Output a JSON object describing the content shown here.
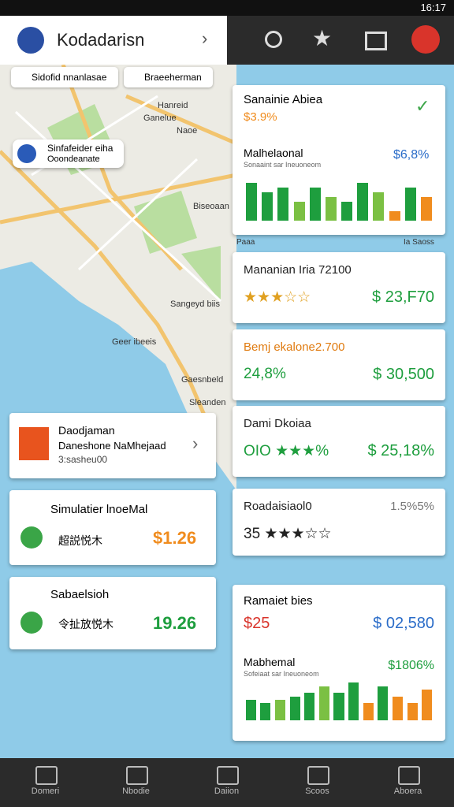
{
  "status_bar": {
    "time": "16:17"
  },
  "header": {
    "title": "Kodadarisn"
  },
  "chips": [
    "Sidofid nnanlasae",
    "Braeeherman"
  ],
  "map_labels": [
    "Hanreid",
    "Ganelue",
    "Naoe",
    "Biseoaan",
    "Sangeyd biis",
    "Geer ibeeis",
    "Gaesnbeld",
    "Sleanden"
  ],
  "map_tooltip": {
    "title": "Sinfafeider eiha",
    "subtitle": "Ooondeanate"
  },
  "left_cards": [
    {
      "title": "Daodjaman",
      "subtitle": "Daneshone NaMhejaad",
      "detail": "3:sasheu00"
    },
    {
      "title": "Simulatier lnoeMal",
      "label": "超説悦木",
      "value": "$1.26"
    },
    {
      "title": "Sabaelsioh",
      "label": "令扯放悦木",
      "value": "19.26"
    }
  ],
  "summary_card": {
    "title": "Sanainie Abiea",
    "value": "$3.9%",
    "chart": {
      "title": "Malhelaonal",
      "subtitle": "Sonaaint sar Ineuoneom",
      "value": "$6,8%",
      "values": [
        8,
        6,
        7,
        4,
        7,
        5,
        4,
        8,
        6,
        2,
        7,
        5
      ],
      "colors": [
        "#1e9e3e",
        "#1e9e3e",
        "#1e9e3e",
        "#7bc043",
        "#1e9e3e",
        "#7bc043",
        "#1e9e3e",
        "#1e9e3e",
        "#7bc043",
        "#f08c1e",
        "#1e9e3e",
        "#f08c1e"
      ],
      "ylim": [
        0,
        10
      ]
    },
    "footer_left": "Paaa",
    "footer_right": "Ia Saoss"
  },
  "list_cards": [
    {
      "title": "Mananian Iria 72100",
      "left_value": "★★★☆☆",
      "right_value": "$ 23,F70"
    },
    {
      "title": "Bemj ekalone2.700",
      "left_value": "24,8%",
      "right_value": "$ 30,500"
    },
    {
      "title": "Dami Dkoiaa",
      "left_value": "OIO ★★★%",
      "right_value": "$ 25,18%"
    },
    {
      "title": "Roadaisiaol0",
      "left_value": "35 ★★★☆☆",
      "right_value": "1.5%5%"
    }
  ],
  "bottom_card": {
    "title": "Ramaiet bies",
    "left_value": "$25",
    "right_value": "$ 02,580",
    "chart": {
      "title": "Mabhemal",
      "subtitle": "Sofeiaat sar Ineuoneom",
      "value": "$1806%",
      "values": [
        3,
        2.5,
        3,
        3.5,
        4,
        5,
        4,
        5.5,
        2.5,
        5,
        3.5,
        2.5,
        4.5
      ],
      "colors": [
        "#1e9e3e",
        "#1e9e3e",
        "#7bc043",
        "#1e9e3e",
        "#1e9e3e",
        "#7bc043",
        "#1e9e3e",
        "#1e9e3e",
        "#f08c1e",
        "#1e9e3e",
        "#f08c1e",
        "#f08c1e",
        "#f08c1e"
      ],
      "ylim": [
        0,
        6
      ]
    }
  },
  "nav": [
    "Domeri",
    "Nbodie",
    "Daiion",
    "Scoos",
    "Aboera"
  ]
}
